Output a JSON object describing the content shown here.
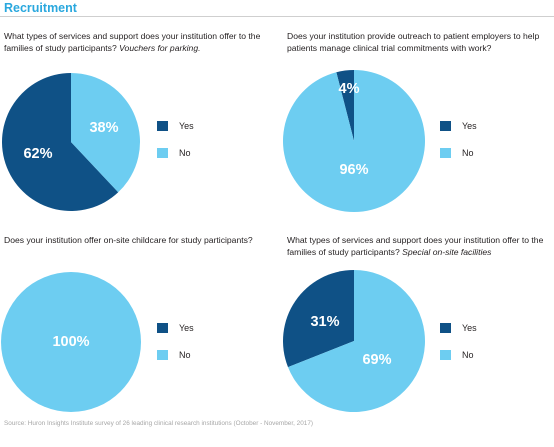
{
  "header": {
    "title": "Recruitment"
  },
  "colors": {
    "yes": "#0f5186",
    "no": "#6dcdf1",
    "header": "#2aa8de"
  },
  "chart_data": [
    {
      "type": "pie",
      "question": "What types of services and support does your institution offer to the families of study participants?",
      "question_emphasis": "Vouchers for parking.",
      "categories": [
        "Yes",
        "No"
      ],
      "values": [
        62,
        38
      ],
      "labels": [
        "62%",
        "38%"
      ]
    },
    {
      "type": "pie",
      "question": "Does your institution provide outreach to patient employers to help patients manage clinical trial commitments with work?",
      "question_emphasis": "",
      "categories": [
        "Yes",
        "No"
      ],
      "values": [
        4,
        96
      ],
      "labels": [
        "4%",
        "96%"
      ]
    },
    {
      "type": "pie",
      "question": "Does your institution offer on-site childcare for study participants?",
      "question_emphasis": "",
      "categories": [
        "Yes",
        "No"
      ],
      "values": [
        0,
        100
      ],
      "labels": [
        "",
        "100%"
      ]
    },
    {
      "type": "pie",
      "question": "What types of services and support does your institution offer to the families of study participants?",
      "question_emphasis": "Special on-site facilities",
      "categories": [
        "Yes",
        "No"
      ],
      "values": [
        31,
        69
      ],
      "labels": [
        "31%",
        "69%"
      ]
    }
  ],
  "source": "Source: Huron Insights Institute survey of 26 leading clinical research institutions (October - November, 2017)"
}
